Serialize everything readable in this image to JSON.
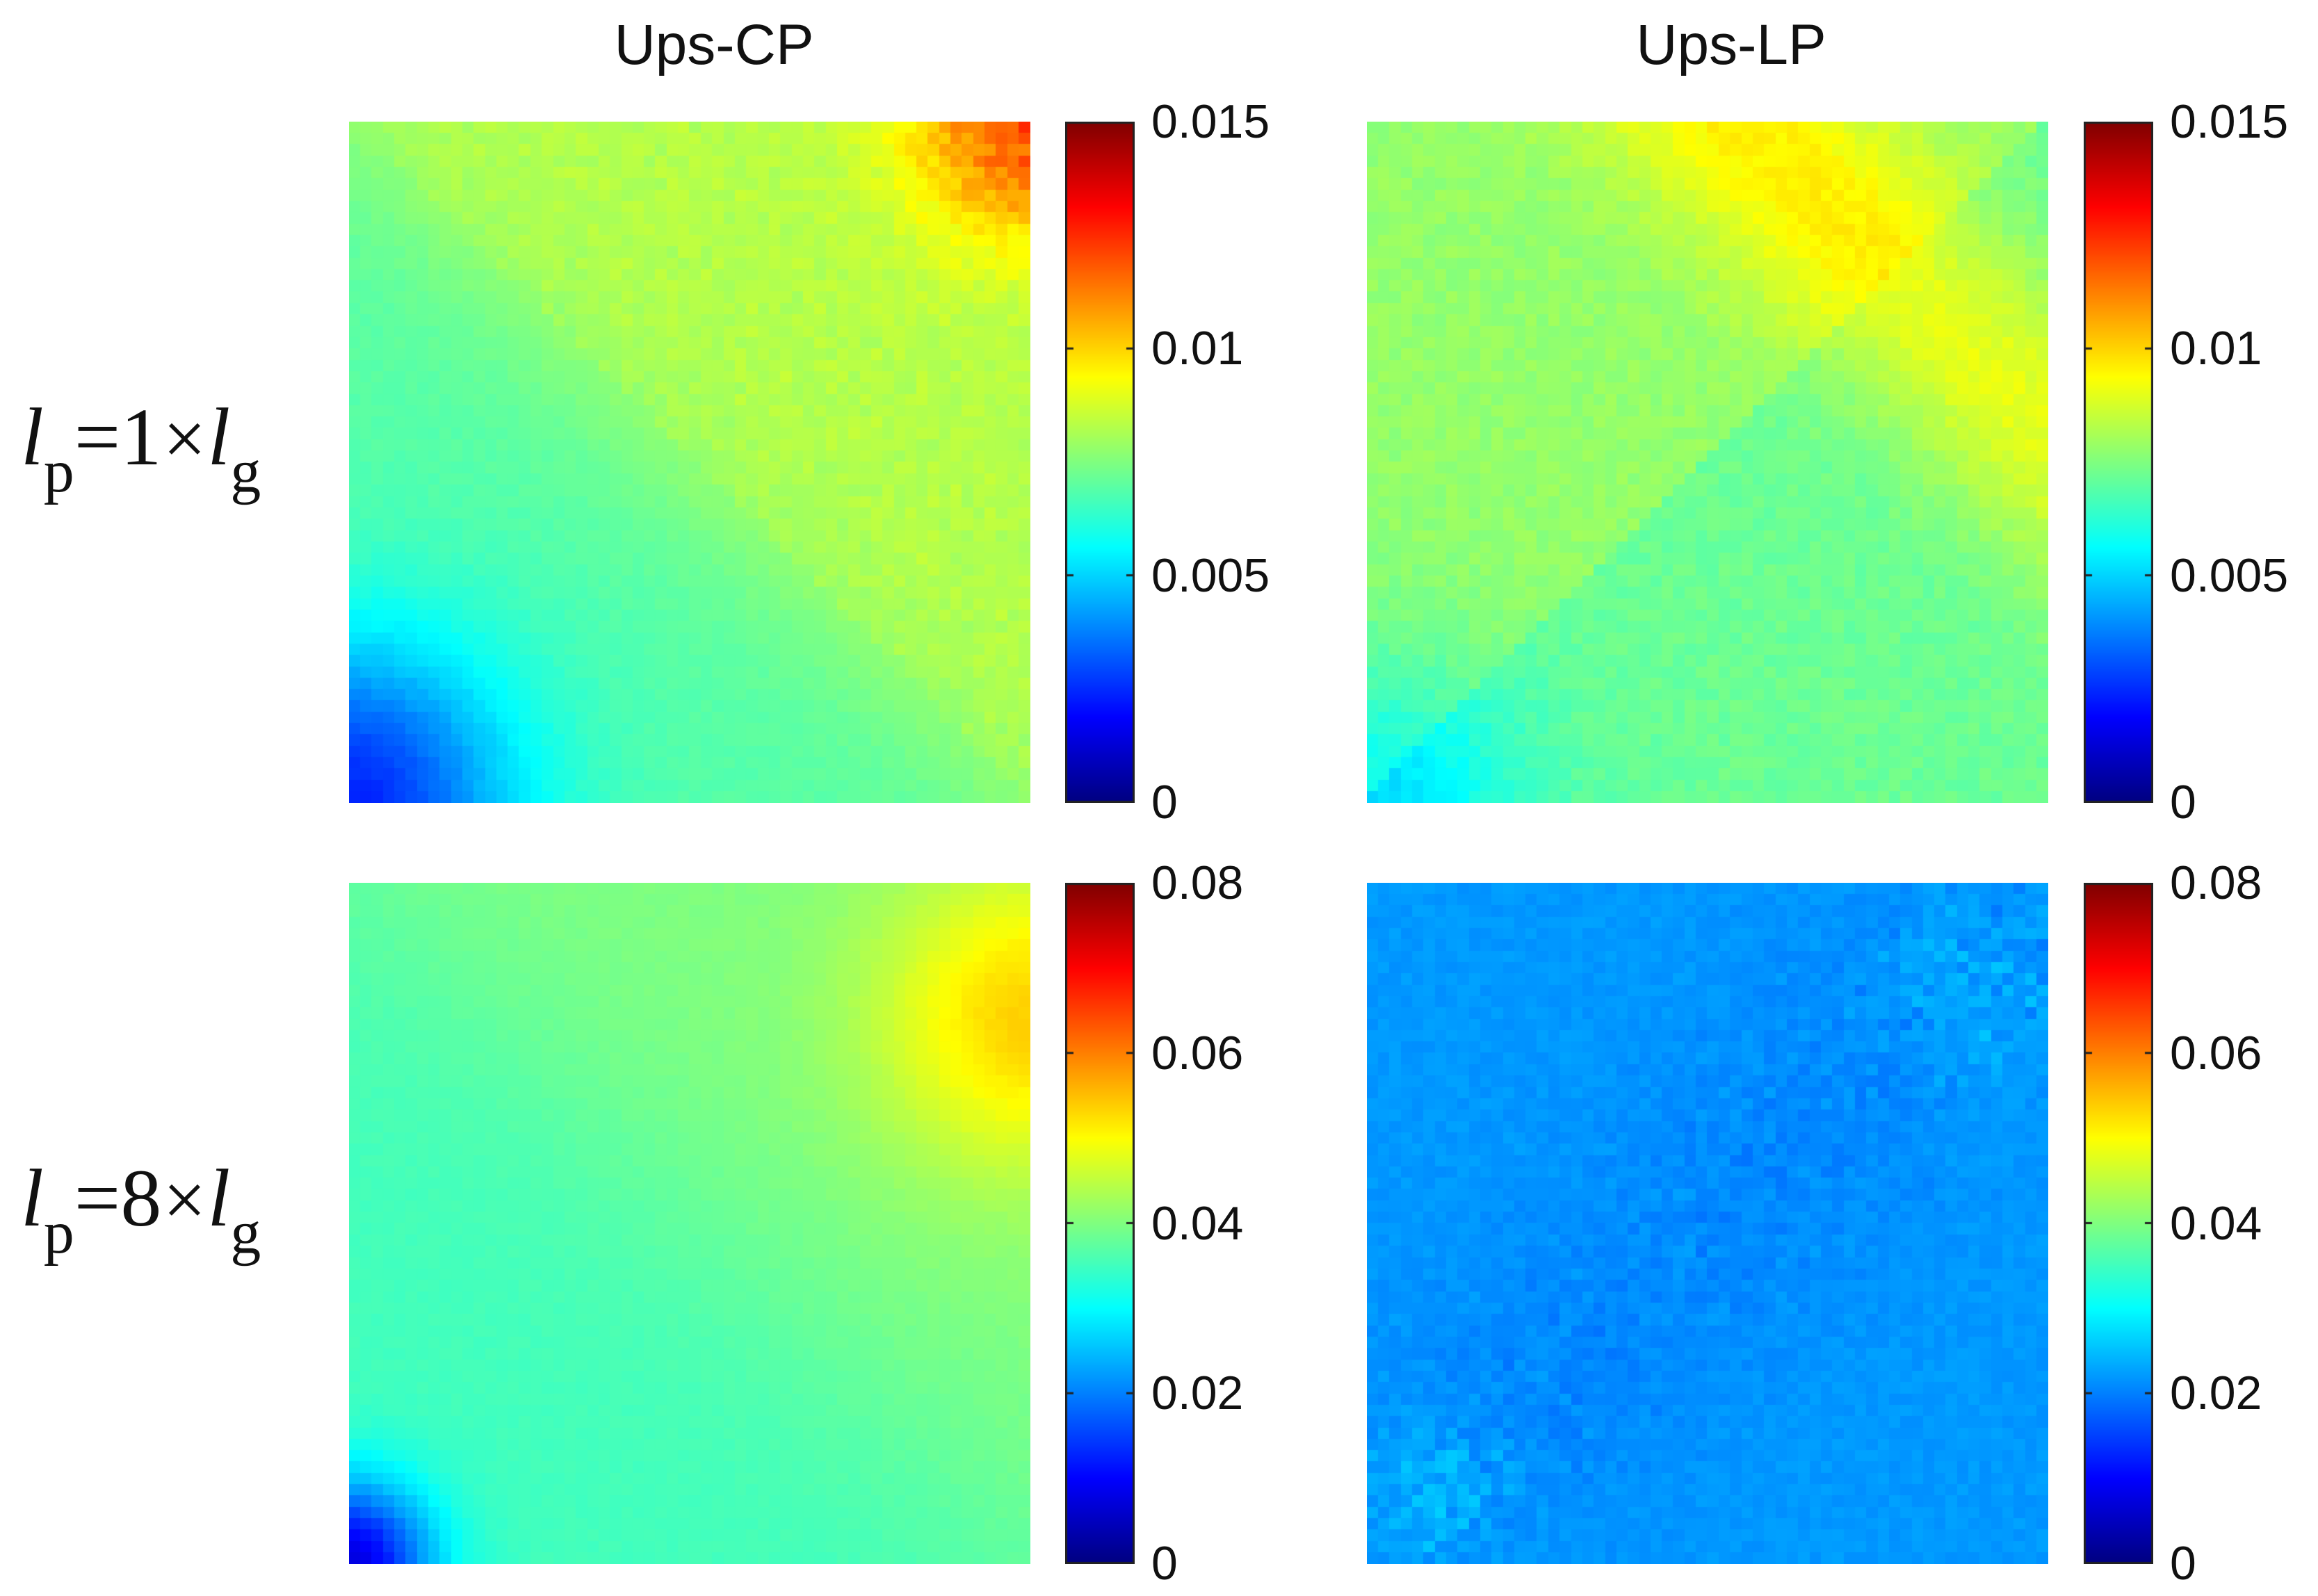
{
  "figure": {
    "columns": [
      "Ups-CP",
      "Ups-LP"
    ],
    "rows": [
      {
        "var": "l",
        "sub_left": "p",
        "eq": "=",
        "factor": "1",
        "times": "×",
        "var2": "l",
        "sub_right": "g"
      },
      {
        "var": "l",
        "sub_left": "p",
        "eq": "=",
        "factor": "8",
        "times": "×",
        "var2": "l",
        "sub_right": "g"
      }
    ]
  },
  "chart_data": [
    {
      "type": "heatmap",
      "title": "Ups-CP",
      "row_label": "lp=1×lg",
      "colormap": "jet",
      "clim": [
        0,
        0.015
      ],
      "colorbar_ticks": [
        "0",
        "0.005",
        "0.01",
        "0.015"
      ],
      "grid": "off",
      "description_of_field": [
        {
          "region": "upper-right corner",
          "value": 0.011
        },
        {
          "region": "upper band",
          "value": 0.0085
        },
        {
          "region": "upper-left",
          "value": 0.008
        },
        {
          "region": "lower-right",
          "value": 0.007
        },
        {
          "region": "lower-left corner",
          "value": 0.004
        }
      ]
    },
    {
      "type": "heatmap",
      "title": "Ups-LP",
      "row_label": "lp=1×lg",
      "colormap": "jet",
      "clim": [
        0,
        0.015
      ],
      "colorbar_ticks": [
        "0",
        "0.005",
        "0.01",
        "0.015"
      ],
      "grid": "off",
      "description_of_field": [
        {
          "region": "diagonal band",
          "value": 0.009
        },
        {
          "region": "upper-left",
          "value": 0.008
        },
        {
          "region": "lower-right",
          "value": 0.0072
        },
        {
          "region": "lower-left",
          "value": 0.0055
        }
      ]
    },
    {
      "type": "heatmap",
      "title": "Ups-CP",
      "row_label": "lp=8×lg",
      "colormap": "jet",
      "clim": [
        0,
        0.08
      ],
      "colorbar_ticks": [
        "0",
        "0.02",
        "0.04",
        "0.06",
        "0.08"
      ],
      "grid": "off",
      "description_of_field": [
        {
          "region": "upper-right corner",
          "value": 0.052
        },
        {
          "region": "upper band",
          "value": 0.042
        },
        {
          "region": "background",
          "value": 0.038
        },
        {
          "region": "lower-left corner",
          "value": 0.012
        }
      ]
    },
    {
      "type": "heatmap",
      "title": "Ups-LP",
      "row_label": "lp=8×lg",
      "colormap": "jet",
      "clim": [
        0,
        0.08
      ],
      "colorbar_ticks": [
        "0",
        "0.02",
        "0.04",
        "0.06",
        "0.08"
      ],
      "grid": "off",
      "description_of_field": [
        {
          "region": "background",
          "value": 0.022
        },
        {
          "region": "diagonal patches",
          "value": 0.019
        },
        {
          "region": "lower-left spots",
          "value": 0.028
        }
      ]
    }
  ]
}
